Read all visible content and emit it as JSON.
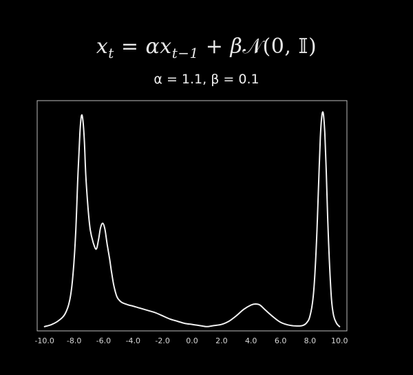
{
  "header": {
    "equation": "x_t = αx_{t−1} + βN(0, I)",
    "equation_lhs": "x",
    "equation_lhs_sub": "t",
    "equation_eq": " = ",
    "equation_alpha": "α",
    "equation_x": "x",
    "equation_x_sub": "t−1",
    "equation_plus": " + ",
    "equation_beta": "β",
    "equation_normal": "𝒩",
    "equation_args_open": "(0, ",
    "equation_identity": "𝕀",
    "equation_args_close": ")",
    "params": "α = 1.1,  β = 0.1"
  },
  "colors": {
    "background": "#000000",
    "line": "#f2f2f2",
    "axes": "#bdbdbd",
    "text": "#d8d8d8"
  },
  "chart_data": {
    "type": "line",
    "title": "",
    "xlabel": "",
    "ylabel": "",
    "xlim": [
      -10.5,
      10.5
    ],
    "ylim": [
      -0.02,
      1.05
    ],
    "grid": false,
    "x_ticks": [
      -10,
      -8,
      -6,
      -4,
      -2,
      0,
      2,
      4,
      6,
      8,
      10
    ],
    "x_tick_labels": [
      "-10.0",
      "-8.0",
      "-6.0",
      "-4.0",
      "-2.0",
      "0.0",
      "2.0",
      "4.0",
      "6.0",
      "8.0",
      "10.0"
    ],
    "series": [
      {
        "x": [
          -10.0,
          -9.5,
          -9.0,
          -8.6,
          -8.3,
          -8.1,
          -7.9,
          -7.75,
          -7.6,
          -7.5,
          -7.4,
          -7.3,
          -7.2,
          -7.05,
          -6.9,
          -6.7,
          -6.5,
          -6.35,
          -6.2,
          -6.05,
          -5.9,
          -5.75,
          -5.6,
          -5.45,
          -5.3,
          -5.1,
          -4.9,
          -4.7,
          -4.5,
          -4.3,
          -4.0,
          -3.5,
          -3.0,
          -2.5,
          -2.0,
          -1.5,
          -1.0,
          -0.5,
          0.0,
          0.5,
          1.0,
          1.5,
          2.0,
          2.5,
          3.0,
          3.5,
          4.0,
          4.3,
          4.6,
          5.0,
          5.5,
          6.0,
          6.5,
          7.0,
          7.5,
          7.8,
          8.0,
          8.2,
          8.35,
          8.5,
          8.6,
          8.7,
          8.8,
          8.9,
          9.0,
          9.1,
          9.2,
          9.3,
          9.45,
          9.6,
          9.8,
          10.0
        ],
        "y": [
          0.0,
          0.01,
          0.03,
          0.06,
          0.12,
          0.22,
          0.42,
          0.68,
          0.9,
          0.98,
          0.96,
          0.86,
          0.7,
          0.55,
          0.45,
          0.39,
          0.36,
          0.4,
          0.46,
          0.48,
          0.45,
          0.38,
          0.32,
          0.25,
          0.19,
          0.14,
          0.12,
          0.11,
          0.105,
          0.1,
          0.095,
          0.085,
          0.075,
          0.065,
          0.05,
          0.035,
          0.025,
          0.015,
          0.01,
          0.005,
          0.0,
          0.005,
          0.01,
          0.025,
          0.05,
          0.08,
          0.1,
          0.105,
          0.1,
          0.075,
          0.045,
          0.02,
          0.008,
          0.003,
          0.005,
          0.02,
          0.05,
          0.13,
          0.27,
          0.5,
          0.7,
          0.88,
          0.98,
          0.99,
          0.9,
          0.72,
          0.5,
          0.32,
          0.13,
          0.05,
          0.015,
          0.0
        ]
      }
    ]
  }
}
